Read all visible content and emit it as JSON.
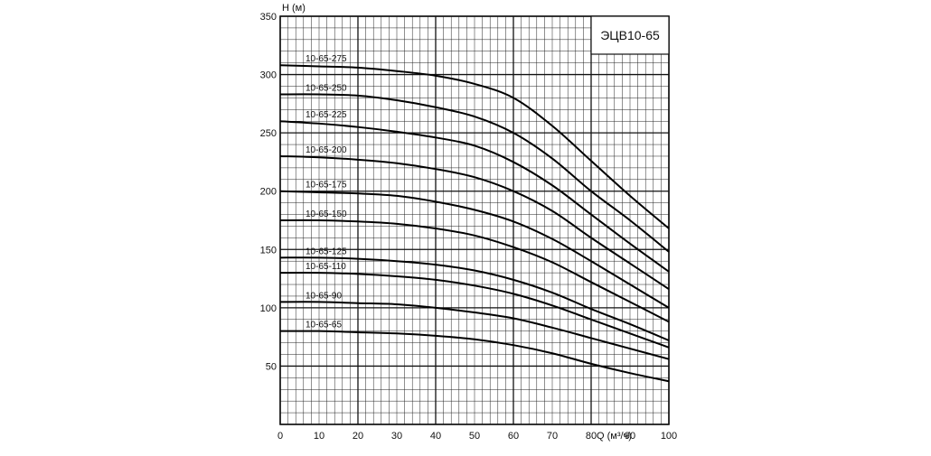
{
  "chart_data": {
    "type": "line",
    "title": "ЭЦВ10-65",
    "xlabel": "Q (м³/ч)",
    "ylabel": "H (м)",
    "xlim": [
      0,
      100
    ],
    "ylim": [
      0,
      350
    ],
    "x_ticks": [
      0,
      10,
      20,
      30,
      40,
      50,
      60,
      70,
      80,
      90,
      100
    ],
    "y_ticks": [
      50,
      100,
      150,
      200,
      250,
      300,
      350
    ],
    "grid": true,
    "minor_grid_step_x": 2,
    "minor_grid_step_y": 10,
    "major_grid_step_x": 20,
    "major_grid_step_y": 50,
    "x": [
      0,
      10,
      20,
      30,
      40,
      50,
      60,
      70,
      80,
      90,
      100
    ],
    "series": [
      {
        "name": "10-65-275",
        "values": [
          308,
          307,
          306,
          303,
          299,
          292,
          280,
          256,
          226,
          196,
          168
        ]
      },
      {
        "name": "10-65-250",
        "values": [
          283,
          283,
          282,
          278,
          272,
          264,
          250,
          228,
          200,
          175,
          148
        ]
      },
      {
        "name": "10-65-225",
        "values": [
          260,
          258,
          255,
          251,
          246,
          239,
          225,
          205,
          180,
          155,
          131
        ]
      },
      {
        "name": "10-65-200",
        "values": [
          230,
          229,
          227,
          224,
          219,
          212,
          200,
          183,
          160,
          138,
          116
        ]
      },
      {
        "name": "10-65-175",
        "values": [
          200,
          199,
          198,
          196,
          191,
          184,
          174,
          159,
          140,
          120,
          100
        ]
      },
      {
        "name": "10-65-150",
        "values": [
          175,
          175,
          174,
          172,
          168,
          162,
          152,
          139,
          122,
          105,
          88
        ]
      },
      {
        "name": "10-65-125",
        "values": [
          143,
          143,
          142,
          140,
          137,
          132,
          124,
          113,
          99,
          86,
          72
        ]
      },
      {
        "name": "10-65-110",
        "values": [
          130,
          130,
          129,
          127,
          124,
          119,
          112,
          102,
          90,
          78,
          66
        ]
      },
      {
        "name": "10-65-90",
        "values": [
          105,
          105,
          104,
          103,
          100,
          96,
          91,
          83,
          74,
          65,
          56
        ]
      },
      {
        "name": "10-65-65",
        "values": [
          80,
          80,
          79,
          78,
          76,
          73,
          68,
          61,
          52,
          44,
          37
        ]
      }
    ]
  }
}
